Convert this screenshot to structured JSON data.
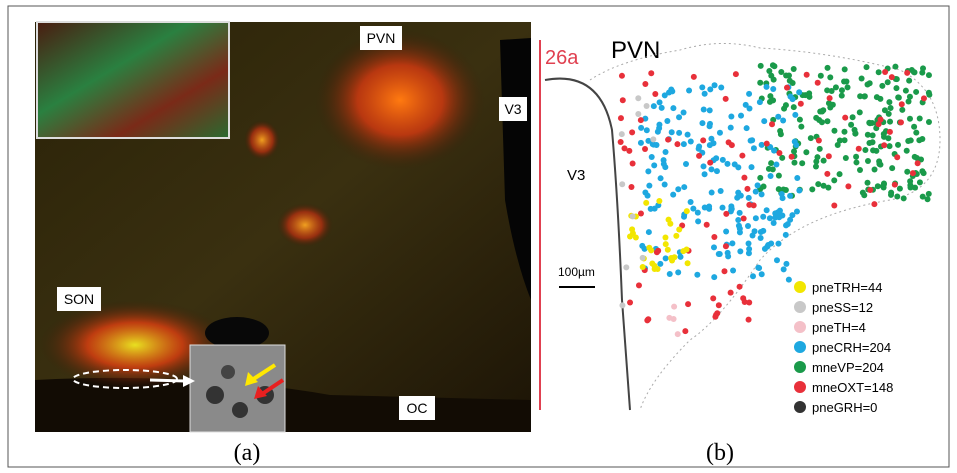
{
  "panel_a": {
    "labels": {
      "pvn": "PVN",
      "v3": "V3",
      "son": "SON",
      "oc": "OC"
    },
    "caption": "(a)"
  },
  "panel_b": {
    "tag": "26a",
    "title": "PVN",
    "v3": "V3",
    "scale": "100µm",
    "legend": [
      {
        "label": "pneTRH=44",
        "color": "#f2e600"
      },
      {
        "label": "pneSS=12",
        "color": "#c8c8c8"
      },
      {
        "label": "pneTH=4",
        "color": "#f4c0c8"
      },
      {
        "label": "pneCRH=204",
        "color": "#1ea8e0"
      },
      {
        "label": "mneVP=204",
        "color": "#1a9a4a"
      },
      {
        "label": "mneOXT=148",
        "color": "#e8303a"
      },
      {
        "label": "pneGRH=0",
        "color": "#333333"
      }
    ],
    "caption": "(b)"
  }
}
